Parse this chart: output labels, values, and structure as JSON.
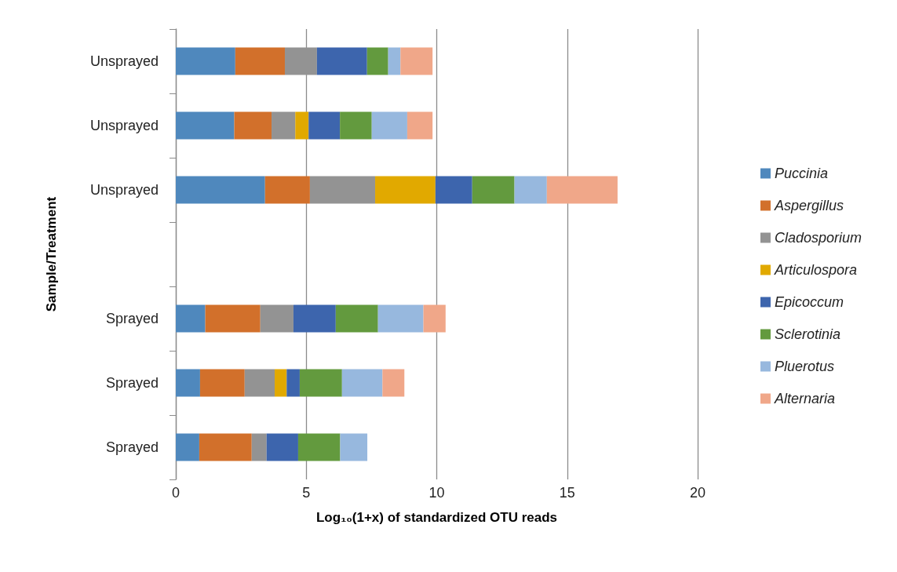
{
  "chart_data": {
    "type": "bar",
    "orientation": "horizontal",
    "stacked": true,
    "xlabel": "Log₁₀(1+x) of standardized OTU reads",
    "ylabel": "Sample/Treatment",
    "categories": [
      "Unsprayed",
      "Unsprayed",
      "Unsprayed",
      null,
      "Sprayed",
      "Sprayed",
      "Sprayed"
    ],
    "xlim": [
      0,
      20
    ],
    "xticks": [
      0,
      5,
      10,
      15,
      20
    ],
    "grid": "x",
    "legend": "right",
    "series": [
      {
        "name": "Puccinia",
        "color": "#4f88bd",
        "values": [
          2.28,
          2.24,
          3.42,
          null,
          1.13,
          0.93,
          0.9
        ]
      },
      {
        "name": "Aspergillus",
        "color": "#d2702b",
        "values": [
          1.9,
          1.43,
          1.72,
          null,
          2.11,
          1.71,
          2.01
        ]
      },
      {
        "name": "Cladosporium",
        "color": "#939393",
        "values": [
          1.23,
          0.91,
          2.5,
          null,
          1.27,
          1.15,
          0.57
        ]
      },
      {
        "name": "Articulospora",
        "color": "#e1a900",
        "values": [
          0,
          0.51,
          2.31,
          null,
          0,
          0.46,
          0
        ]
      },
      {
        "name": "Epicoccum",
        "color": "#3d65ad",
        "values": [
          1.92,
          1.2,
          1.41,
          null,
          1.62,
          0.5,
          1.21
        ]
      },
      {
        "name": "Sclerotinia",
        "color": "#639a3e",
        "values": [
          0.81,
          1.22,
          1.62,
          null,
          1.62,
          1.62,
          1.61
        ]
      },
      {
        "name": "Pluerotus",
        "color": "#97b8de",
        "values": [
          0.47,
          1.36,
          1.24,
          null,
          1.74,
          1.55,
          1.04
        ]
      },
      {
        "name": "Alternaria",
        "color": "#f0a789",
        "values": [
          1.23,
          0.97,
          2.71,
          null,
          0.85,
          0.84,
          0
        ]
      }
    ]
  }
}
